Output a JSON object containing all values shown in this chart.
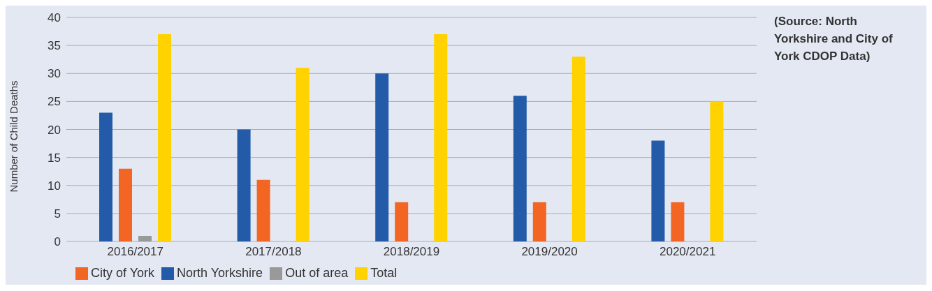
{
  "chart_data": {
    "type": "bar",
    "ylabel": "Number of Child Deaths",
    "categories": [
      "2016/2017",
      "2017/2018",
      "2018/2019",
      "2019/2020",
      "2020/2021"
    ],
    "series": [
      {
        "name": "North Yorkshire",
        "color": "#235ba8",
        "values": [
          23,
          20,
          30,
          26,
          18
        ]
      },
      {
        "name": "City of York",
        "color": "#f26522",
        "values": [
          13,
          11,
          7,
          7,
          7
        ]
      },
      {
        "name": "Out of area",
        "color": "#999999",
        "values": [
          1,
          0,
          0,
          0,
          0
        ]
      },
      {
        "name": "Total",
        "color": "#ffd200",
        "values": [
          37,
          31,
          37,
          33,
          25
        ]
      }
    ],
    "ylim": [
      0,
      40
    ],
    "yticks": [
      0,
      5,
      10,
      15,
      20,
      25,
      30,
      35,
      40
    ],
    "grid": "y",
    "legend": "bottom left",
    "annotations": [
      "(Source:  North Yorkshire and City of York CDOP Data)"
    ]
  }
}
